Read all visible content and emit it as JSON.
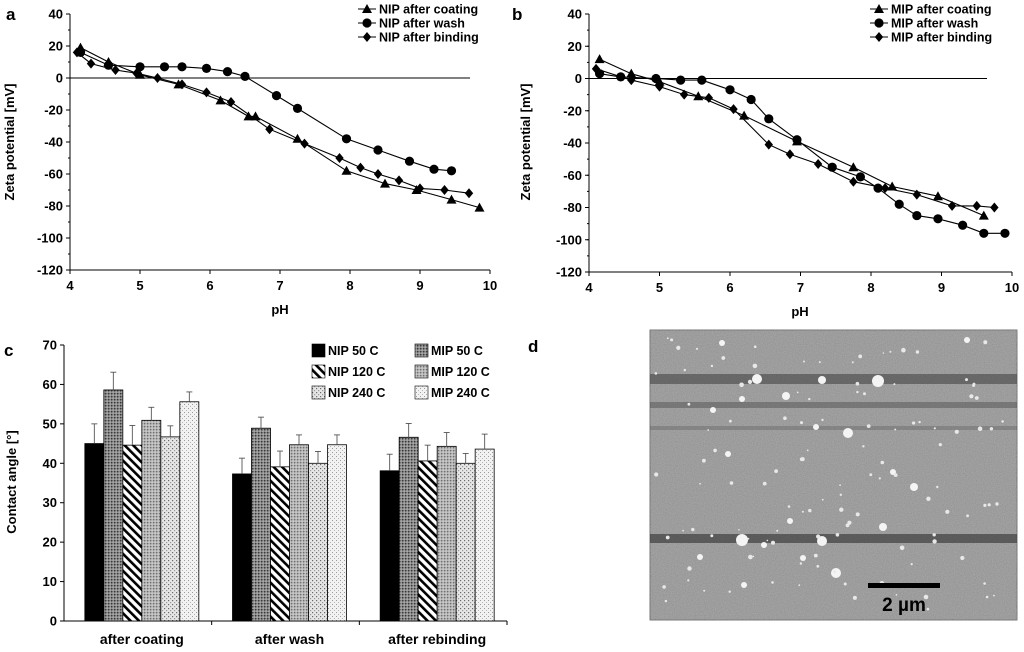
{
  "chart_data": [
    {
      "panel": "a",
      "type": "line",
      "xlabel": "pH",
      "ylabel": "Zeta potential [mV]",
      "xlim": [
        4,
        10
      ],
      "ylim": [
        -120,
        40
      ],
      "xticks": [
        4,
        5,
        6,
        7,
        8,
        9,
        10
      ],
      "yticks": [
        -120,
        -100,
        -80,
        -60,
        -40,
        -20,
        0,
        20,
        40
      ],
      "legend_position": "top-right",
      "series": [
        {
          "name": "NIP after coating",
          "marker": "triangle",
          "x": [
            4.15,
            4.55,
            5.0,
            5.55,
            6.15,
            6.55,
            6.65,
            7.25,
            7.95,
            8.5,
            8.95,
            9.45,
            9.85
          ],
          "y": [
            19,
            10,
            2,
            -4,
            -14,
            -24,
            -24,
            -38,
            -58,
            -66,
            -70,
            -76,
            -81
          ]
        },
        {
          "name": "NIP after wash",
          "marker": "circle",
          "x": [
            4.15,
            4.55,
            5.0,
            5.35,
            5.6,
            5.95,
            6.25,
            6.5,
            6.95,
            7.25,
            7.95,
            8.4,
            8.85,
            9.2,
            9.45
          ],
          "y": [
            16,
            8,
            7,
            7,
            7,
            6,
            4,
            1,
            -11,
            -19,
            -38,
            -45,
            -52,
            -57,
            -58
          ]
        },
        {
          "name": "NIP after binding",
          "marker": "diamond",
          "x": [
            4.1,
            4.3,
            4.65,
            4.95,
            5.25,
            5.6,
            5.95,
            6.3,
            6.85,
            7.35,
            7.85,
            8.15,
            8.4,
            8.7,
            9.0,
            9.35,
            9.7
          ],
          "y": [
            16,
            9,
            5,
            3,
            0,
            -4,
            -9,
            -15,
            -32,
            -41,
            -50,
            -56,
            -60,
            -64,
            -69,
            -70,
            -72
          ]
        }
      ]
    },
    {
      "panel": "b",
      "type": "line",
      "xlabel": "pH",
      "ylabel": "Zeta potential [mV]",
      "xlim": [
        4,
        10
      ],
      "ylim": [
        -120,
        40
      ],
      "xticks": [
        4,
        5,
        6,
        7,
        8,
        9,
        10
      ],
      "yticks": [
        -120,
        -100,
        -80,
        -60,
        -40,
        -20,
        0,
        20,
        40
      ],
      "legend_position": "top-right",
      "series": [
        {
          "name": "MIP after coating",
          "marker": "triangle",
          "x": [
            4.15,
            4.6,
            5.0,
            5.55,
            6.2,
            6.95,
            7.75,
            8.3,
            8.95,
            9.6
          ],
          "y": [
            12,
            3,
            -2,
            -11,
            -23,
            -39,
            -55,
            -67,
            -73,
            -85
          ]
        },
        {
          "name": "MIP after wash",
          "marker": "circle",
          "x": [
            4.15,
            4.45,
            4.95,
            5.3,
            5.6,
            6.0,
            6.3,
            6.55,
            6.95,
            7.45,
            7.85,
            8.1,
            8.4,
            8.65,
            8.95,
            9.3,
            9.6,
            9.9
          ],
          "y": [
            3,
            1,
            0,
            -1,
            -1,
            -7,
            -13,
            -25,
            -38,
            -55,
            -61,
            -68,
            -78,
            -85,
            -87,
            -91,
            -96,
            -96
          ]
        },
        {
          "name": "MIP after binding",
          "marker": "diamond",
          "x": [
            4.1,
            4.6,
            5.0,
            5.35,
            5.7,
            6.05,
            6.55,
            6.85,
            7.25,
            7.75,
            8.2,
            8.65,
            9.15,
            9.5,
            9.75
          ],
          "y": [
            6,
            -1,
            -5,
            -10,
            -12,
            -19,
            -41,
            -47,
            -53,
            -64,
            -68,
            -72,
            -79,
            -79,
            -80
          ]
        }
      ]
    },
    {
      "panel": "c",
      "type": "bar",
      "ylabel": "Contact angle [°]",
      "ylim": [
        0,
        70
      ],
      "yticks": [
        0,
        10,
        20,
        30,
        40,
        50,
        60,
        70
      ],
      "categories": [
        "after coating",
        "after wash",
        "after rebinding"
      ],
      "legend_position": "top-right",
      "series": [
        {
          "name": "NIP 50 C",
          "pattern": "solid-black",
          "values": [
            45.0,
            37.3,
            38.1
          ],
          "errors": [
            5.0,
            4.0,
            4.2
          ]
        },
        {
          "name": "MIP 50 C",
          "pattern": "dark-dots",
          "values": [
            58.6,
            48.9,
            46.6
          ],
          "errors": [
            4.5,
            2.8,
            3.5
          ]
        },
        {
          "name": "NIP 120 C",
          "pattern": "diagonal-hatch",
          "values": [
            44.6,
            39.1,
            40.6
          ],
          "errors": [
            5.0,
            4.0,
            4.0
          ]
        },
        {
          "name": "MIP 120 C",
          "pattern": "grey-dots",
          "values": [
            50.9,
            44.7,
            44.3
          ],
          "errors": [
            3.3,
            2.5,
            3.5
          ]
        },
        {
          "name": "NIP 240 C",
          "pattern": "light-dots",
          "values": [
            46.7,
            40.0,
            40.0
          ],
          "errors": [
            2.8,
            3.0,
            2.5
          ]
        },
        {
          "name": "MIP 240 C",
          "pattern": "fine-dots",
          "values": [
            55.6,
            44.7,
            43.6
          ],
          "errors": [
            2.5,
            2.5,
            3.8
          ]
        }
      ]
    }
  ],
  "panels": {
    "a": "a",
    "b": "b",
    "c": "c",
    "d": "d"
  },
  "afm": {
    "scale_bar_label": "2 µm"
  },
  "colors": {
    "line": "#000000",
    "background": "#ffffff"
  }
}
